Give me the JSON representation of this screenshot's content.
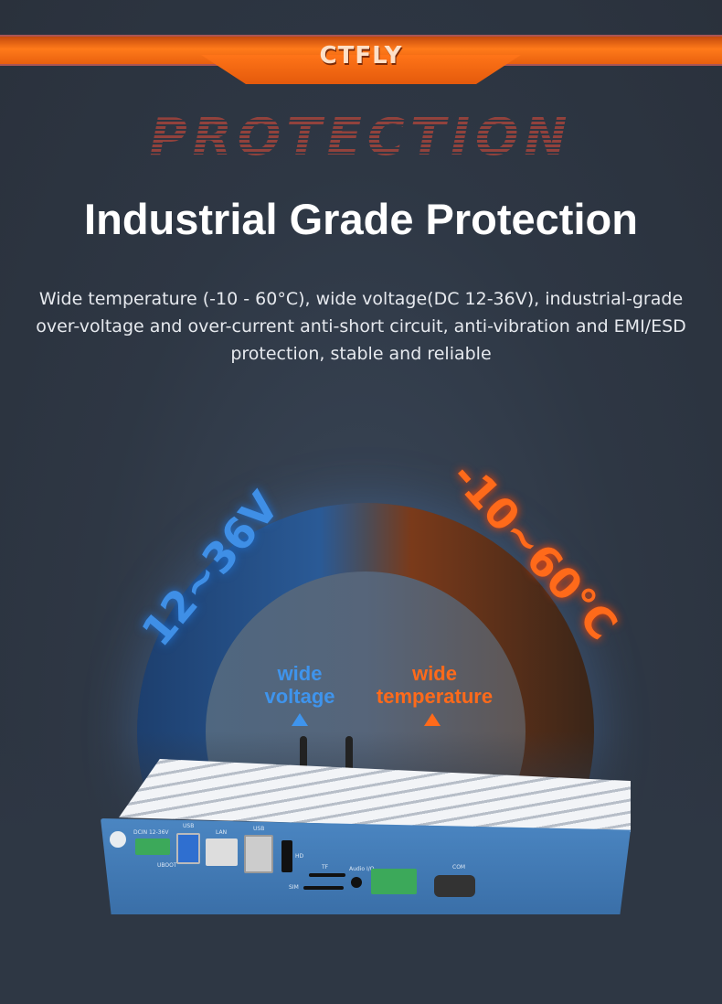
{
  "brand": {
    "logo": "CTFLY"
  },
  "watermark": "PROTECTION",
  "title": "Industrial Grade Protection",
  "description": [
    "Wide temperature (-10 - 60°C), wide voltage(DC 12-36V), industrial-grade",
    "over-voltage and over-current anti-short circuit, anti-vibration and EMI/ESD",
    "protection, stable and reliable"
  ],
  "voltage": {
    "range": "12~36V",
    "label_line1": "wide",
    "label_line2": "voltage",
    "color": "#3f8fe6"
  },
  "temperature": {
    "range": "-10~60°C",
    "label_line1": "wide",
    "label_line2": "temperature",
    "color": "#ff6a1a"
  },
  "device_labels": {
    "power": "DCIN 12-36V",
    "usb1": "USB",
    "lan": "LAN",
    "usb2": "USB",
    "hdmi": "HD",
    "tf": "TF",
    "sim": "SIM",
    "audio": "Audio I/O",
    "com": "COM",
    "uboot": "UBOOT"
  }
}
